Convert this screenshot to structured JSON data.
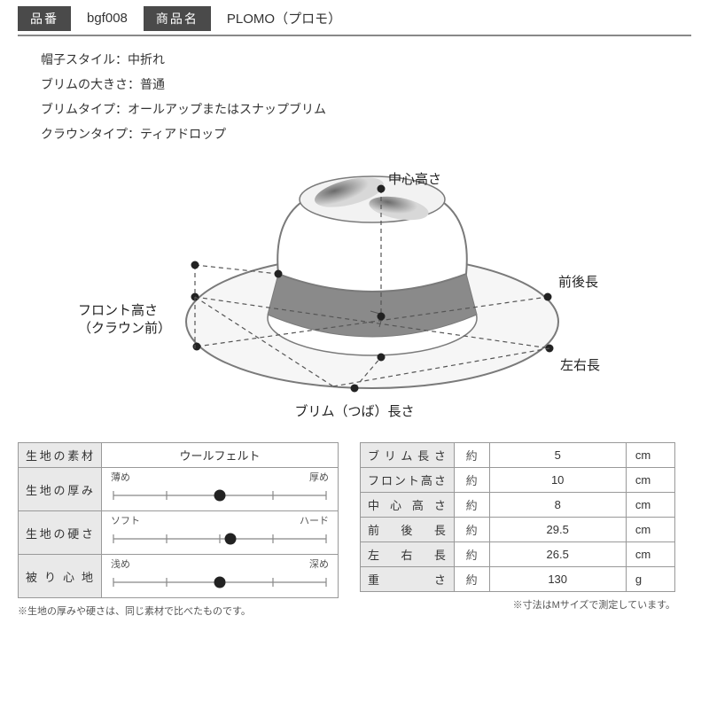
{
  "header": {
    "code_label": "品番",
    "code_value": "bgf008",
    "name_label": "商品名",
    "name_value": "PLOMO（プロモ）"
  },
  "specs": {
    "line1": "帽子スタイル：中折れ",
    "line2": "ブリムの大きさ：普通",
    "line3": "ブリムタイプ：オールアップまたはスナップブリム",
    "line4": "クラウンタイプ：ティアドロップ"
  },
  "diagram": {
    "label_center": "中心高さ",
    "label_front_back": "前後長",
    "label_front_height_1": "フロント高さ",
    "label_front_height_2": "（クラウン前）",
    "label_left_right": "左右長",
    "label_brim": "ブリム（つば）長さ",
    "colors": {
      "hat_outline": "#7a7a7a",
      "hat_band": "#8a8a8a",
      "brim_fill": "#f6f6f6",
      "dash": "#555555",
      "dot": "#222222",
      "label_text": "#222222"
    }
  },
  "left_table": {
    "material_label": "生地の素材",
    "material_value": "ウールフェルト",
    "rows": [
      {
        "label": "生地の厚み",
        "left": "薄め",
        "right": "厚め",
        "pos": 0.5
      },
      {
        "label": "生地の硬さ",
        "left": "ソフト",
        "right": "ハード",
        "pos": 0.55
      },
      {
        "label": "被り心地",
        "left": "浅め",
        "right": "深め",
        "pos": 0.5
      }
    ],
    "slider": {
      "track_color": "#888888",
      "tick_color": "#888888",
      "knob_color": "#222222",
      "track_width": 240,
      "tick_count": 5
    },
    "footnote": "※生地の厚みや硬さは、同じ素材で比べたものです。"
  },
  "right_table": {
    "approx": "約",
    "rows": [
      {
        "label": "ブリム長さ",
        "value": "5",
        "unit": "cm"
      },
      {
        "label": "フロント高さ",
        "value": "10",
        "unit": "cm"
      },
      {
        "label": "中心高さ",
        "value": "8",
        "unit": "cm"
      },
      {
        "label": "前後長",
        "value": "29.5",
        "unit": "cm"
      },
      {
        "label": "左右長",
        "value": "26.5",
        "unit": "cm"
      },
      {
        "label": "重さ",
        "value": "130",
        "unit": "g"
      }
    ],
    "footnote": "※寸法はMサイズで測定しています。"
  }
}
